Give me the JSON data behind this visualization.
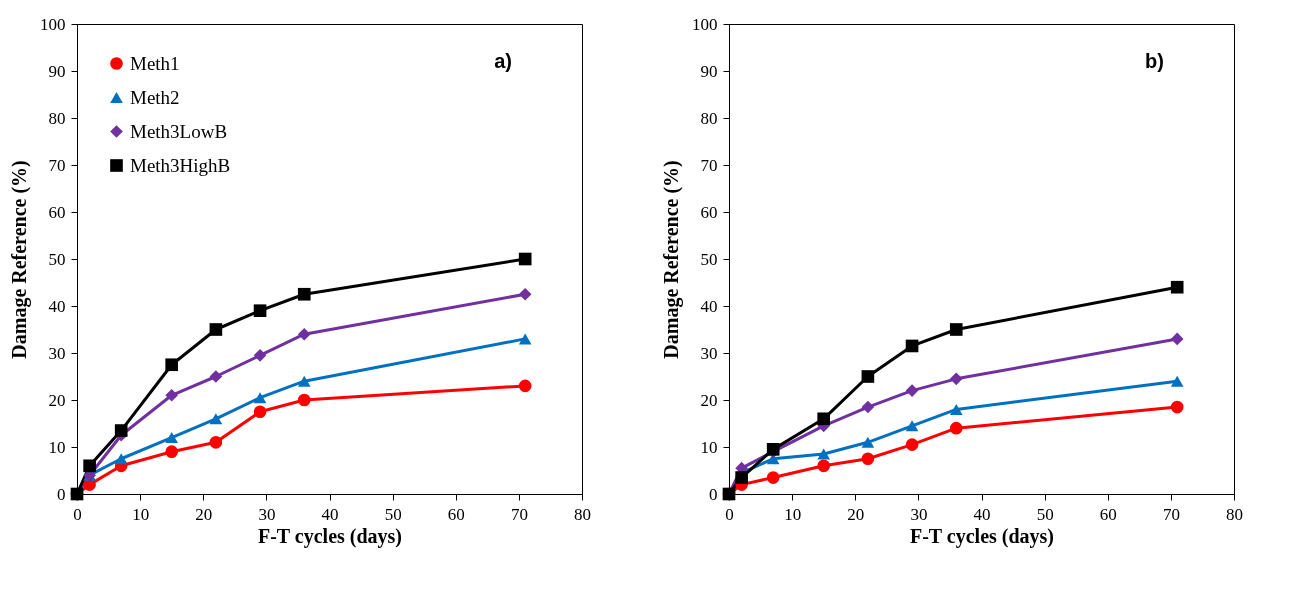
{
  "chart_data": [
    {
      "type": "line",
      "xlabel": "F-T cycles (days)",
      "ylabel": "Damage Reference (%)",
      "annotations": [
        "a)"
      ],
      "legend": "top left",
      "x": [
        0,
        2,
        7,
        15,
        22,
        29,
        36,
        71
      ],
      "xlim": [
        0,
        80
      ],
      "xticks": [
        0,
        10,
        20,
        30,
        40,
        50,
        60,
        70,
        80
      ],
      "ylim": [
        0,
        100
      ],
      "yticks": [
        0,
        10,
        20,
        30,
        40,
        50,
        60,
        70,
        80,
        90,
        100
      ],
      "series": [
        {
          "name": "Meth1",
          "color": "#ff0000",
          "marker": "circle",
          "values": [
            0,
            2,
            6,
            9,
            11,
            17.5,
            20,
            23
          ]
        },
        {
          "name": "Meth2",
          "color": "#0070c0",
          "marker": "triangle",
          "values": [
            0,
            4,
            7.5,
            12,
            16,
            20.5,
            24,
            33
          ]
        },
        {
          "name": "Meth3LowB",
          "color": "#7030a0",
          "marker": "diamond",
          "values": [
            0,
            4,
            12.5,
            21,
            25,
            29.5,
            34,
            42.5
          ]
        },
        {
          "name": "Meth3HighB",
          "color": "#000000",
          "marker": "square",
          "values": [
            0,
            6,
            13.5,
            27.5,
            35,
            39,
            42.5,
            50
          ]
        }
      ]
    },
    {
      "type": "line",
      "xlabel": "F-T cycles (days)",
      "ylabel": "Damage Reference (%)",
      "annotations": [
        "b)"
      ],
      "legend": "top left",
      "x": [
        0,
        2,
        7,
        15,
        22,
        29,
        36,
        71
      ],
      "xlim": [
        0,
        80
      ],
      "xticks": [
        0,
        10,
        20,
        30,
        40,
        50,
        60,
        70,
        80
      ],
      "ylim": [
        0,
        100
      ],
      "yticks": [
        0,
        10,
        20,
        30,
        40,
        50,
        60,
        70,
        80,
        90,
        100
      ],
      "series": [
        {
          "name": "Meth1",
          "color": "#ff0000",
          "marker": "circle",
          "values": [
            0,
            2,
            3.5,
            6,
            7.5,
            10.5,
            14,
            18.5
          ]
        },
        {
          "name": "Meth2",
          "color": "#0070c0",
          "marker": "triangle",
          "values": [
            0,
            4.5,
            7.5,
            8.5,
            11,
            14.5,
            18,
            24
          ]
        },
        {
          "name": "Meth3LowB",
          "color": "#7030a0",
          "marker": "diamond",
          "values": [
            0,
            5.5,
            9,
            14.5,
            18.5,
            22,
            24.5,
            33
          ]
        },
        {
          "name": "Meth3HighB",
          "color": "#000000",
          "marker": "square",
          "values": [
            0,
            3.5,
            9.5,
            16,
            25,
            31.5,
            35,
            44
          ]
        }
      ]
    }
  ]
}
